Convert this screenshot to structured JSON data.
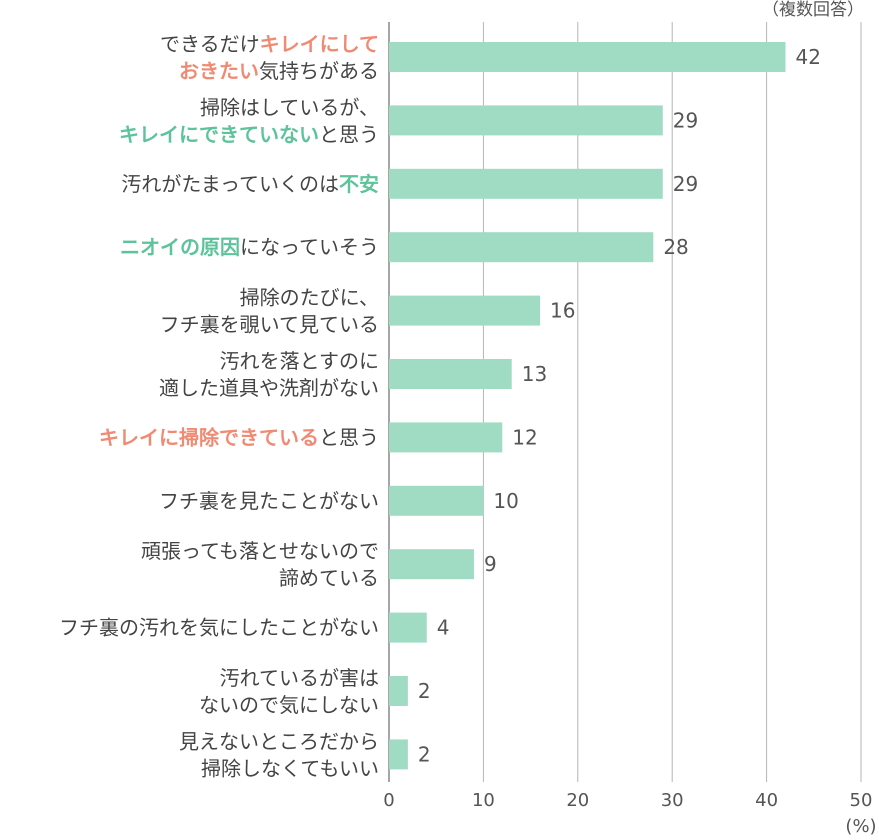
{
  "chart_data": {
    "type": "bar",
    "orientation": "horizontal",
    "note": "（複数回答）",
    "unit": "(%)",
    "xlim": [
      0,
      50
    ],
    "xticks": [
      0,
      10,
      20,
      30,
      40,
      50
    ],
    "grid": true,
    "bar_color": "#a0dcc4",
    "highlight_colors": {
      "pink": "#f08a73",
      "green": "#5cc39b"
    },
    "categories": [
      {
        "lines": [
          [
            {
              "t": "できるだけ"
            },
            {
              "t": "キレイにして",
              "hl": "pink"
            }
          ],
          [
            {
              "t": "おきたい",
              "hl": "pink"
            },
            {
              "t": "気持ちがある"
            }
          ]
        ]
      },
      {
        "lines": [
          [
            {
              "t": "掃除はしているが、"
            }
          ],
          [
            {
              "t": "キレイにできていない",
              "hl": "green"
            },
            {
              "t": "と思う"
            }
          ]
        ]
      },
      {
        "lines": [
          [
            {
              "t": "汚れがたまっていくのは"
            },
            {
              "t": "不安",
              "hl": "green"
            }
          ]
        ]
      },
      {
        "lines": [
          [
            {
              "t": "ニオイの原因",
              "hl": "green"
            },
            {
              "t": "になっていそう"
            }
          ]
        ]
      },
      {
        "lines": [
          [
            {
              "t": "掃除のたびに、"
            }
          ],
          [
            {
              "t": "フチ裏を覗いて見ている"
            }
          ]
        ]
      },
      {
        "lines": [
          [
            {
              "t": "汚れを落とすのに"
            }
          ],
          [
            {
              "t": "適した道具や洗剤がない"
            }
          ]
        ]
      },
      {
        "lines": [
          [
            {
              "t": "キレイに掃除できている",
              "hl": "pink"
            },
            {
              "t": "と思う"
            }
          ]
        ]
      },
      {
        "lines": [
          [
            {
              "t": "フチ裏を見たことがない"
            }
          ]
        ]
      },
      {
        "lines": [
          [
            {
              "t": "頑張っても落とせないので"
            }
          ],
          [
            {
              "t": "諦めている"
            }
          ]
        ]
      },
      {
        "lines": [
          [
            {
              "t": "フチ裏の汚れを気にしたことがない"
            }
          ]
        ]
      },
      {
        "lines": [
          [
            {
              "t": "汚れているが害は"
            }
          ],
          [
            {
              "t": "ないので気にしない"
            }
          ]
        ]
      },
      {
        "lines": [
          [
            {
              "t": "見えないところだから"
            }
          ],
          [
            {
              "t": "掃除しなくてもいい"
            }
          ]
        ]
      }
    ],
    "values": [
      42,
      29,
      29,
      28,
      16,
      13,
      12,
      10,
      9,
      4,
      2,
      2
    ]
  }
}
